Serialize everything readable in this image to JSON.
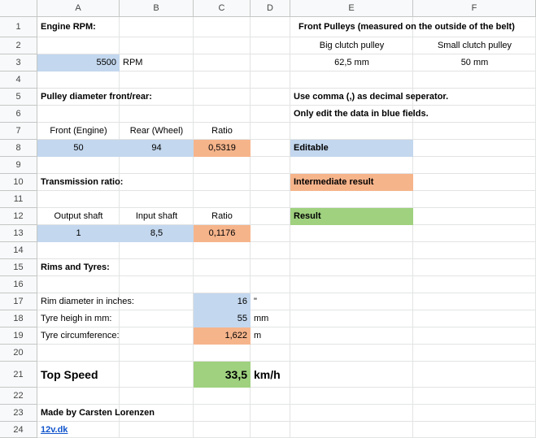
{
  "columns": [
    "A",
    "B",
    "C",
    "D",
    "E",
    "F"
  ],
  "rows": [
    "1",
    "2",
    "3",
    "4",
    "5",
    "6",
    "7",
    "8",
    "9",
    "10",
    "11",
    "12",
    "13",
    "14",
    "15",
    "16",
    "17",
    "18",
    "19",
    "20",
    "21",
    "22",
    "23",
    "24"
  ],
  "engine": {
    "title": "Engine RPM:",
    "rpm_value": "5500",
    "rpm_unit": "RPM"
  },
  "front_pulleys": {
    "title": "Front Pulleys (measured on the outside of the belt)",
    "big_label": "Big clutch pulley",
    "small_label": "Small clutch pulley",
    "big_value": "62,5 mm",
    "small_value": "50 mm"
  },
  "pulley": {
    "title": "Pulley diameter front/rear:",
    "front_label": "Front (Engine)",
    "rear_label": "Rear (Wheel)",
    "ratio_label": "Ratio",
    "front_value": "50",
    "rear_value": "94",
    "ratio_value": "0,5319"
  },
  "notes": {
    "decimal": "Use comma (,) as decimal seperator.",
    "edit": "Only edit the data in blue fields."
  },
  "legend": {
    "editable": "Editable",
    "intermediate": "Intermediate result",
    "result": "Result",
    "colors": {
      "editable": "#c3d7ee",
      "intermediate": "#f6b48b",
      "result": "#9fd17f"
    }
  },
  "transmission": {
    "title": "Transmission ratio:",
    "output_label": "Output shaft",
    "input_label": "Input shaft",
    "ratio_label": "Ratio",
    "output_value": "1",
    "input_value": "8,5",
    "ratio_value": "0,1176"
  },
  "rims": {
    "title": "Rims and Tyres:",
    "rim_label": "Rim diameter in inches:",
    "rim_value": "16",
    "rim_unit": "\"",
    "tyre_label": "Tyre heigh in mm:",
    "tyre_value": "55",
    "tyre_unit": "mm",
    "circ_label": "Tyre circumference:",
    "circ_value": "1,622",
    "circ_unit": "m"
  },
  "top_speed": {
    "label": "Top Speed",
    "value": "33,5",
    "unit": "km/h"
  },
  "footer": {
    "made_by": "Made by Carsten Lorenzen",
    "link": "12v.dk"
  }
}
